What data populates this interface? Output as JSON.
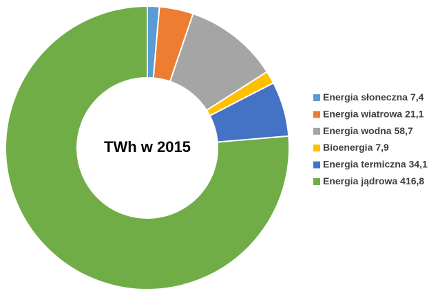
{
  "chart_data": {
    "type": "donut",
    "title": "TWh w 2015",
    "categories": [
      "Energia słoneczna",
      "Energia wiatrowa",
      "Energia wodna",
      "Bioenergia",
      "Energia termiczna",
      "Energia jądrowa"
    ],
    "values": [
      7.4,
      21.1,
      58.7,
      7.9,
      34.1,
      416.8
    ],
    "value_labels": [
      "7,4",
      "21,1",
      "58,7",
      "7,9",
      "34,1",
      "416,8"
    ],
    "colors": [
      "#5b9bd5",
      "#ed7d31",
      "#a5a5a5",
      "#ffc000",
      "#4472c4",
      "#70ad47"
    ],
    "legend": "right"
  }
}
